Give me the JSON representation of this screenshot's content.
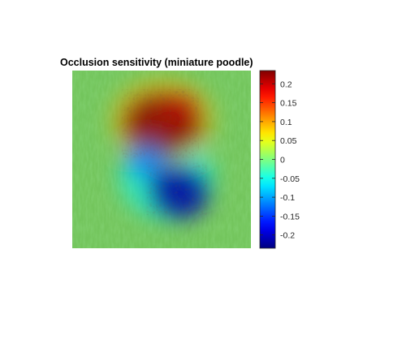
{
  "chart_data": {
    "type": "heatmap",
    "title": "Occlusion sensitivity (miniature poodle)",
    "xlabel": "",
    "ylabel": "",
    "colormap": "jet",
    "colorbar": {
      "clim": [
        -0.235,
        0.235
      ],
      "ticks": [
        0.2,
        0.15,
        0.1,
        0.05,
        0,
        -0.05,
        -0.1,
        -0.15,
        -0.2
      ],
      "tick_labels": [
        "0.2",
        "0.15",
        "0.1",
        "0.05",
        "0",
        "-0.05",
        "-0.1",
        "-0.15",
        "-0.2"
      ]
    },
    "overlay": "heatmap overlaid on photo of dog in grass",
    "regions": [
      {
        "value": 0.23
      },
      {
        "value": 0.2
      },
      {
        "value": -0.12
      },
      {
        "value": -0.22
      }
    ],
    "background_value": 0,
    "colors": {
      "grass_dark": "#3f8f2a",
      "grass_light": "#8cc86a",
      "axis": "#262626"
    }
  }
}
